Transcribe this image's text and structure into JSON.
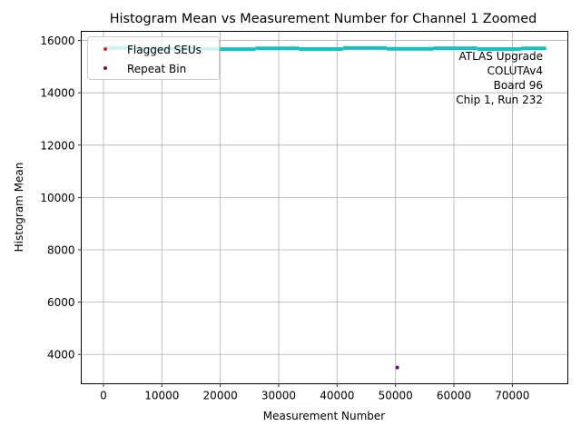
{
  "chart_data": {
    "type": "scatter",
    "title": "Histogram Mean vs Measurement Number for Channel 1 Zoomed",
    "xlabel": "Measurement Number",
    "ylabel": "Histogram Mean",
    "xlim": [
      -3800,
      79500
    ],
    "ylim": [
      2880,
      16350
    ],
    "xticks": [
      0,
      10000,
      20000,
      30000,
      40000,
      50000,
      60000,
      70000
    ],
    "xtick_labels": [
      "0",
      "10000",
      "20000",
      "30000",
      "40000",
      "50000",
      "60000",
      "70000"
    ],
    "yticks": [
      4000,
      6000,
      8000,
      10000,
      12000,
      14000,
      16000
    ],
    "ytick_labels": [
      "4000",
      "6000",
      "8000",
      "10000",
      "12000",
      "14000",
      "16000"
    ],
    "grid": true,
    "legend_position": "top-left",
    "annotation": [
      "ATLAS Upgrade",
      "COLUTAv4",
      "Board 96",
      "Chip 1, Run 232"
    ],
    "series": [
      {
        "color": "#17bfbf",
        "segments": [
          {
            "x0": 0,
            "x1": 5000,
            "y": 15710
          },
          {
            "x0": 5000,
            "x1": 19500,
            "y": 15680
          },
          {
            "x0": 19500,
            "x1": 26000,
            "y": 15670
          },
          {
            "x0": 26000,
            "x1": 33500,
            "y": 15700
          },
          {
            "x0": 33500,
            "x1": 41000,
            "y": 15675
          },
          {
            "x0": 41000,
            "x1": 48500,
            "y": 15710
          },
          {
            "x0": 48500,
            "x1": 56500,
            "y": 15680
          },
          {
            "x0": 56500,
            "x1": 64000,
            "y": 15705
          },
          {
            "x0": 64000,
            "x1": 71500,
            "y": 15675
          },
          {
            "x0": 71500,
            "x1": 75800,
            "y": 15700
          }
        ]
      },
      {
        "name": "Flagged SEUs",
        "color": "#d62728",
        "points": []
      },
      {
        "name": "Repeat Bin",
        "color": "#6b0f6b",
        "points": [
          {
            "x": 50300,
            "y": 3500
          }
        ]
      }
    ]
  }
}
